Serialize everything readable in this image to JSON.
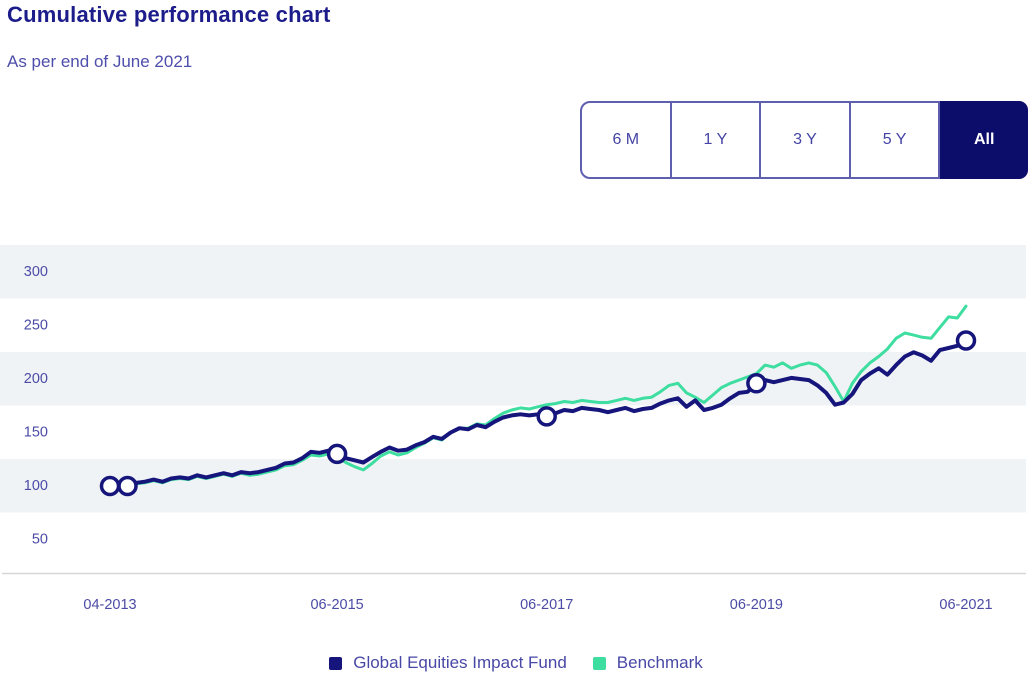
{
  "header": {
    "title": "Cumulative performance chart",
    "subtitle": "As per end of June 2021"
  },
  "range_selector": {
    "options": [
      {
        "label": "6 M",
        "selected": false
      },
      {
        "label": "1 Y",
        "selected": false
      },
      {
        "label": "3 Y",
        "selected": false
      },
      {
        "label": "5 Y",
        "selected": false
      },
      {
        "label": "All",
        "selected": true
      }
    ]
  },
  "colors": {
    "title": "#1c1c8a",
    "fund_line": "#15157b",
    "benchmark_line": "#3edda0",
    "selected_button_bg": "#0c0c6a",
    "band_stripe": "#f0f3f6",
    "tick_label": "#4b4ba6",
    "axis_line": "#d7d7db"
  },
  "chart_data": {
    "type": "line",
    "title": "Cumulative performance chart",
    "subtitle": "As per end of June 2021",
    "x_unit": "month",
    "x_start": "2013-04",
    "x_end": "2021-06",
    "x_ticks": [
      {
        "index": 0,
        "label": "04-2013"
      },
      {
        "index": 26,
        "label": "06-2015"
      },
      {
        "index": 50,
        "label": "06-2017"
      },
      {
        "index": 74,
        "label": "06-2019"
      },
      {
        "index": 98,
        "label": "06-2021"
      }
    ],
    "y_ticks": [
      300,
      250,
      200,
      150,
      100,
      50
    ],
    "ylim": [
      15,
      325
    ],
    "grid": "horizontal striped bands, no vertical gridlines",
    "legend_position": "bottom center",
    "series": [
      {
        "name": "Global Equities Impact Fund",
        "color": "#15157b",
        "values": [
          100,
          101,
          100,
          103,
          104,
          106,
          104,
          107,
          108,
          107,
          110,
          108,
          110,
          112,
          110,
          113,
          112,
          113,
          115,
          117,
          121,
          122,
          126,
          132,
          131,
          133,
          130,
          126,
          124,
          122,
          127,
          132,
          136,
          133,
          134,
          138,
          141,
          146,
          144,
          150,
          154,
          153,
          157,
          155,
          160,
          164,
          166,
          167,
          166,
          167,
          165,
          168,
          171,
          170,
          173,
          172,
          171,
          169,
          171,
          173,
          170,
          172,
          173,
          177,
          180,
          182,
          174,
          180,
          171,
          173,
          176,
          182,
          187,
          188,
          196,
          199,
          197,
          199,
          201,
          200,
          199,
          194,
          187,
          176,
          178,
          186,
          199,
          205,
          210,
          204,
          213,
          221,
          225,
          222,
          217,
          227,
          229,
          231,
          236
        ]
      },
      {
        "name": "Benchmark",
        "color": "#3edda0",
        "values": [
          100,
          100,
          99,
          102,
          103,
          105,
          103,
          106,
          107,
          106,
          109,
          107,
          109,
          111,
          109,
          112,
          110,
          111,
          113,
          115,
          119,
          120,
          124,
          129,
          128,
          130,
          127,
          122,
          118,
          115,
          121,
          128,
          132,
          129,
          131,
          136,
          140,
          145,
          143,
          150,
          154,
          154,
          158,
          157,
          163,
          168,
          171,
          173,
          172,
          174,
          176,
          177,
          179,
          178,
          180,
          179,
          178,
          178,
          180,
          182,
          180,
          182,
          183,
          188,
          194,
          196,
          187,
          183,
          178,
          185,
          192,
          196,
          199,
          202,
          205,
          213,
          211,
          215,
          210,
          213,
          215,
          213,
          206,
          193,
          179,
          196,
          207,
          215,
          221,
          228,
          238,
          243,
          241,
          239,
          238,
          248,
          258,
          257,
          268
        ]
      }
    ],
    "markers": {
      "series": "Global Equities Impact Fund",
      "style": "white circle with navy ring",
      "indices": [
        0,
        2,
        26,
        50,
        74,
        98
      ]
    }
  }
}
